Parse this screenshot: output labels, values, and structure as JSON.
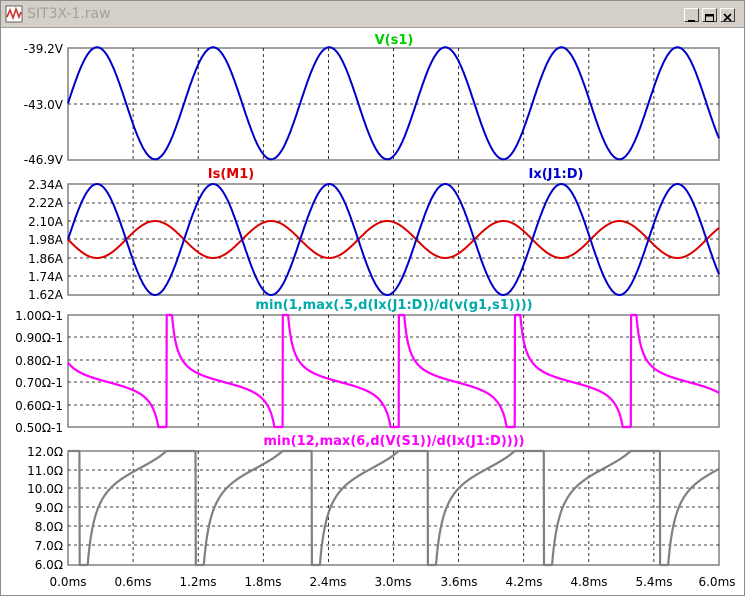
{
  "window": {
    "title": "SIT3X-1.raw",
    "buttons": [
      "minimize",
      "maximize",
      "close"
    ]
  },
  "x_axis": {
    "unit": "ms",
    "ticks": [
      "0.0ms",
      "0.6ms",
      "1.2ms",
      "1.8ms",
      "2.4ms",
      "3.0ms",
      "3.6ms",
      "4.2ms",
      "4.8ms",
      "5.4ms",
      "6.0ms"
    ]
  },
  "chart_data": [
    {
      "type": "line",
      "pane": "vs1",
      "title": "V(s1)",
      "title_color": "#00cc00",
      "y_ticks": [
        "-39.2V",
        "-43.0V",
        "-46.9V"
      ],
      "ylim": [
        -46.9,
        -39.2
      ],
      "series": [
        {
          "name": "V(s1)",
          "color": "#0000cc",
          "waveform": "sine",
          "offset": -43.0,
          "amplitude": 3.85,
          "period_ms": 1.07,
          "phase": "starts at offset rising",
          "x_range_ms": [
            0,
            6.0
          ]
        }
      ]
    },
    {
      "type": "line",
      "pane": "currents",
      "legend": [
        "Is(M1)",
        "Ix(J1:D)"
      ],
      "legend_colors": [
        "#dd0000",
        "#0000cc"
      ],
      "y_ticks": [
        "2.34A",
        "2.22A",
        "2.10A",
        "1.98A",
        "1.86A",
        "1.74A",
        "1.62A"
      ],
      "ylim": [
        1.62,
        2.34
      ],
      "series": [
        {
          "name": "Is(M1)",
          "color": "#dd0000",
          "waveform": "sine",
          "offset": 1.98,
          "amplitude": 0.12,
          "period_ms": 1.07,
          "phase": "starts at offset falling"
        },
        {
          "name": "Ix(J1:D)",
          "color": "#0000cc",
          "waveform": "sine",
          "offset": 1.98,
          "amplitude": 0.36,
          "period_ms": 1.07,
          "phase": "starts at offset rising"
        }
      ]
    },
    {
      "type": "line",
      "pane": "transconductance",
      "title": "min(1,max(.5,d(Ix(J1:D))/d(v(g1,s1))))",
      "title_color": "#00aaaa",
      "y_ticks": [
        "1.00Ω-1",
        "0.90Ω-1",
        "0.80Ω-1",
        "0.70Ω-1",
        "0.60Ω-1",
        "0.50Ω-1"
      ],
      "ylim": [
        0.5,
        1.0
      ],
      "series": [
        {
          "name": "min(1,max(.5,d(Ix(J1:D))/d(v(g1,s1))))",
          "color": "#ff00ff",
          "waveform": "clipped tangent-like spikes",
          "clip": [
            0.5,
            1.0
          ],
          "baseline": 0.7,
          "period_ms": 1.07
        }
      ]
    },
    {
      "type": "line",
      "pane": "resistance",
      "title": "min(12,max(6,d(V(S1))/d(Ix(J1:D))))",
      "title_color": "#ff00ff",
      "y_ticks": [
        "12.0Ω",
        "11.0Ω",
        "10.0Ω",
        "9.0Ω",
        "8.0Ω",
        "7.0Ω",
        "6.0Ω"
      ],
      "ylim": [
        6.0,
        12.0
      ],
      "series": [
        {
          "name": "min(12,max(6,d(V(S1))/d(Ix(J1:D))))",
          "color": "#808080",
          "waveform": "clipped rising curves",
          "clip": [
            6.0,
            12.0
          ],
          "period_ms": 1.07
        }
      ]
    }
  ]
}
